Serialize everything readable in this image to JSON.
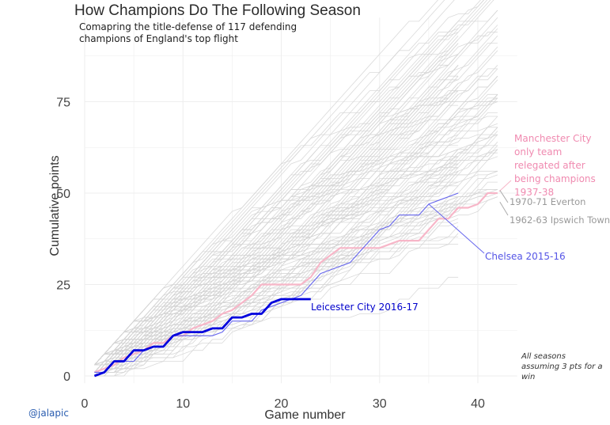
{
  "title": "How Champions Do The Following Season",
  "subtitle": "Comapring the title-defense of 117 defending champions of England's top flight",
  "credit": "@jalapic",
  "note": "All seasons assuming 3 pts for a win",
  "annotations": {
    "mancity": "Manchester City only team relegated after being champions 1937-38",
    "everton": "1970-71 Everton",
    "ipswich": "1962-63 Ipswich Town",
    "chelsea": "Chelsea 2015-16",
    "leicester": "Leicester City 2016-17"
  },
  "colors": {
    "background_lines": "#d3d3d3",
    "leicester": "#0000dd",
    "chelsea": "#6666ee",
    "mancity": "#f7b6c8",
    "grid": "#eeeeee"
  },
  "chart_data": {
    "type": "line",
    "title": "How Champions Do The Following Season",
    "xlabel": "Game number",
    "ylabel": "Cumulative points",
    "xlim": [
      0,
      44
    ],
    "ylim": [
      -2,
      98
    ],
    "x_ticks": [
      0,
      10,
      20,
      30,
      40
    ],
    "y_ticks": [
      0,
      25,
      50,
      75
    ],
    "grid": true,
    "background_series": {
      "count": 117,
      "description_points_per_game_range": [
        1.0,
        2.4
      ],
      "games_range": [
        38,
        42
      ]
    },
    "series": [
      {
        "name": "Leicester City 2016-17",
        "x": [
          1,
          2,
          3,
          4,
          5,
          6,
          7,
          8,
          9,
          10,
          11,
          12,
          13,
          14,
          15,
          16,
          17,
          18,
          19,
          20,
          21,
          22,
          23
        ],
        "y": [
          0,
          1,
          4,
          4,
          7,
          7,
          8,
          8,
          11,
          12,
          12,
          12,
          13,
          13,
          16,
          16,
          17,
          17,
          20,
          21,
          21,
          21,
          21
        ]
      },
      {
        "name": "Chelsea 2015-16",
        "x": [
          1,
          2,
          3,
          4,
          5,
          6,
          7,
          8,
          9,
          10,
          11,
          12,
          13,
          14,
          15,
          16,
          17,
          18,
          19,
          20,
          21,
          22,
          23,
          24,
          25,
          26,
          27,
          28,
          29,
          30,
          31,
          32,
          33,
          34,
          35,
          36,
          37,
          38
        ],
        "y": [
          1,
          1,
          4,
          4,
          4,
          7,
          8,
          8,
          11,
          11,
          11,
          11,
          11,
          12,
          15,
          15,
          15,
          18,
          19,
          20,
          21,
          22,
          25,
          28,
          29,
          30,
          31,
          34,
          37,
          40,
          41,
          44,
          44,
          44,
          47,
          48,
          49,
          50
        ]
      },
      {
        "name": "Manchester City 1937-38",
        "x": [
          1,
          2,
          3,
          4,
          5,
          6,
          7,
          8,
          9,
          10,
          11,
          12,
          13,
          14,
          15,
          16,
          17,
          18,
          19,
          20,
          21,
          22,
          23,
          24,
          25,
          26,
          27,
          28,
          29,
          30,
          31,
          32,
          33,
          34,
          35,
          36,
          37,
          38,
          39,
          40,
          41,
          42
        ],
        "y": [
          1,
          2,
          3,
          5,
          6,
          7,
          9,
          9,
          11,
          11,
          13,
          14,
          15,
          17,
          18,
          20,
          22,
          25,
          25,
          25,
          25,
          25,
          27,
          31,
          33,
          35,
          35,
          35,
          35,
          35,
          36,
          37,
          37,
          37,
          40,
          43,
          43,
          46,
          46,
          47,
          50,
          50
        ]
      },
      {
        "name": "1970-71 Everton",
        "x": [
          42
        ],
        "y": [
          51
        ]
      },
      {
        "name": "1962-63 Ipswich Town",
        "x": [
          42
        ],
        "y": [
          48
        ]
      }
    ]
  }
}
